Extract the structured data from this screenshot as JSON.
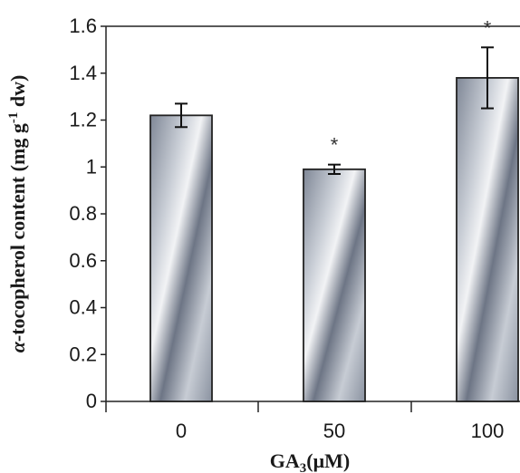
{
  "chart_data": {
    "type": "bar",
    "title": "",
    "xlabel": {
      "prefix": "GA",
      "sub": "3",
      "suffix": "(μM)"
    },
    "ylabel": {
      "alpha": "α",
      "main": "-tocopherol content (mg g",
      "sup": "-1",
      "tail": " dw)"
    },
    "categories": [
      "0",
      "50",
      "100"
    ],
    "values": [
      1.22,
      0.99,
      1.38
    ],
    "errors": [
      0.05,
      0.02,
      0.13
    ],
    "significance": [
      "",
      "*",
      "*"
    ],
    "ylim": [
      0,
      1.6
    ],
    "yticks": [
      "0",
      "0.2",
      "0.4",
      "0.6",
      "0.8",
      "1",
      "1.2",
      "1.4",
      "1.6"
    ],
    "grid": false,
    "legend": "none"
  }
}
